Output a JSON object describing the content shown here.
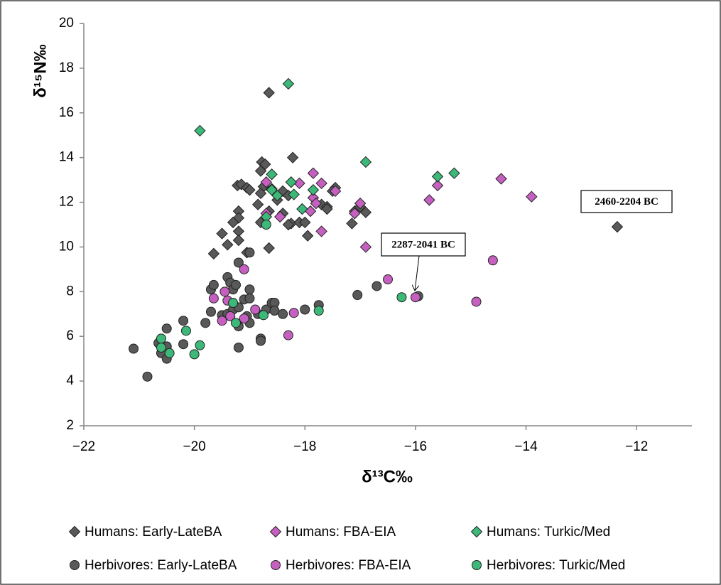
{
  "chart_data": {
    "type": "scatter",
    "x_label": "δ¹³C‰",
    "y_label": "δ¹⁵N‰",
    "xlim": [
      -22,
      -11
    ],
    "ylim": [
      2,
      20
    ],
    "xticks": [
      {
        "value": -22,
        "label": "−22"
      },
      {
        "value": -20,
        "label": "−20"
      },
      {
        "value": -18,
        "label": "−18"
      },
      {
        "value": -16,
        "label": "−16"
      },
      {
        "value": -14,
        "label": "−14"
      },
      {
        "value": -12,
        "label": "−12"
      }
    ],
    "yticks": [
      2,
      4,
      6,
      8,
      10,
      12,
      14,
      16,
      18,
      20
    ],
    "grid": false,
    "legend": "bottom",
    "annotations": [
      "2460-2204 BC",
      "2287-2041 BC"
    ],
    "series": [
      {
        "name": "Humans: Early-LateBA",
        "marker": "diamond",
        "color": "#595959",
        "x": [
          -18.65,
          -18.22,
          -18.78,
          -18.72,
          -18.8,
          -19.22,
          -19.15,
          -19.05,
          -19.0,
          -18.75,
          -18.8,
          -18.6,
          -18.4,
          -18.3,
          -18.5,
          -18.65,
          -18.8,
          -18.85,
          -19.2,
          -19.2,
          -19.3,
          -19.5,
          -19.2,
          -19.2,
          -19.4,
          -18.65,
          -19.05,
          -19.65,
          -18.25,
          -18.1,
          -17.95,
          -17.7,
          -17.6,
          -17.45,
          -17.5,
          -17.6,
          -17.15,
          -17.1,
          -17.0,
          -16.9,
          -12.35,
          -18.4,
          -18.3,
          -18.0
        ],
        "values": [
          16.9,
          14.0,
          13.8,
          13.7,
          13.4,
          12.75,
          12.8,
          12.65,
          12.55,
          12.7,
          12.4,
          12.6,
          12.5,
          12.3,
          12.1,
          11.6,
          11.1,
          11.9,
          11.6,
          11.3,
          11.1,
          10.6,
          10.7,
          10.3,
          10.1,
          9.95,
          9.75,
          9.7,
          11.05,
          11.1,
          10.5,
          11.9,
          11.8,
          12.65,
          12.5,
          11.7,
          11.05,
          11.6,
          11.8,
          11.55,
          10.9,
          11.5,
          11.0,
          11.1
        ]
      },
      {
        "name": "Humans: FBA-EIA",
        "marker": "diamond",
        "color": "#c660c0",
        "x": [
          -18.7,
          -18.1,
          -17.85,
          -17.7,
          -17.85,
          -17.9,
          -17.8,
          -17.7,
          -17.45,
          -17.1,
          -17.0,
          -16.9,
          -18.45,
          -18.7,
          -15.75,
          -15.6,
          -14.45,
          -13.9
        ],
        "values": [
          12.9,
          12.85,
          13.3,
          12.85,
          12.2,
          11.6,
          11.95,
          10.7,
          12.5,
          11.5,
          11.95,
          10.0,
          11.35,
          11.5,
          12.1,
          12.75,
          13.05,
          12.25
        ]
      },
      {
        "name": "Humans: Turkic/Med",
        "marker": "diamond",
        "color": "#3cb878",
        "x": [
          -19.9,
          -18.3,
          -18.6,
          -18.25,
          -18.6,
          -18.5,
          -18.2,
          -18.05,
          -17.85,
          -16.9,
          -15.6,
          -15.3,
          -18.7
        ],
        "values": [
          15.2,
          17.3,
          13.25,
          12.9,
          12.55,
          12.3,
          12.35,
          11.7,
          12.55,
          13.8,
          13.15,
          13.3,
          11.35
        ]
      },
      {
        "name": "Herbivores: Early-LateBA",
        "marker": "circle",
        "color": "#595959",
        "x": [
          -21.1,
          -20.85,
          -20.65,
          -20.6,
          -20.5,
          -20.5,
          -20.5,
          -20.2,
          -20.2,
          -19.8,
          -19.7,
          -19.7,
          -19.65,
          -19.4,
          -19.35,
          -19.3,
          -19.25,
          -19.2,
          -19.0,
          -19.1,
          -19.0,
          -19.5,
          -19.4,
          -19.3,
          -19.2,
          -19.2,
          -19.05,
          -19.0,
          -19.2,
          -18.8,
          -18.8,
          -18.85,
          -18.7,
          -18.6,
          -18.55,
          -18.55,
          -18.4,
          -18.0,
          -17.75,
          -17.05,
          -16.7,
          -15.95,
          -19.0
        ],
        "values": [
          5.45,
          4.2,
          5.7,
          5.25,
          5.0,
          5.55,
          6.35,
          6.7,
          5.65,
          6.6,
          7.1,
          8.1,
          8.3,
          8.65,
          8.4,
          8.1,
          8.3,
          9.3,
          8.1,
          7.65,
          7.7,
          6.95,
          7.0,
          7.2,
          7.3,
          6.45,
          6.9,
          6.6,
          5.5,
          5.9,
          5.8,
          7.0,
          7.2,
          7.5,
          7.5,
          7.15,
          7.0,
          7.2,
          7.4,
          7.85,
          8.25,
          7.8,
          9.75
        ]
      },
      {
        "name": "Herbivores: FBA-EIA",
        "marker": "circle",
        "color": "#c660c0",
        "x": [
          -19.65,
          -19.45,
          -19.4,
          -19.35,
          -19.5,
          -19.1,
          -19.1,
          -18.9,
          -18.3,
          -18.2,
          -16.5,
          -16.0,
          -14.9,
          -14.6
        ],
        "values": [
          7.7,
          8.0,
          7.6,
          6.9,
          6.7,
          9.0,
          6.8,
          7.2,
          6.05,
          7.05,
          8.55,
          7.75,
          7.55,
          9.4
        ]
      },
      {
        "name": "Herbivores: Turkic/Med",
        "marker": "circle",
        "color": "#3cb878",
        "x": [
          -20.6,
          -20.6,
          -20.45,
          -20.15,
          -20.0,
          -19.9,
          -19.3,
          -19.25,
          -18.75,
          -17.75,
          -16.25,
          -18.7
        ],
        "values": [
          5.9,
          5.5,
          5.25,
          6.25,
          5.2,
          5.6,
          7.5,
          6.6,
          6.95,
          7.15,
          7.75,
          11.0
        ]
      }
    ]
  }
}
